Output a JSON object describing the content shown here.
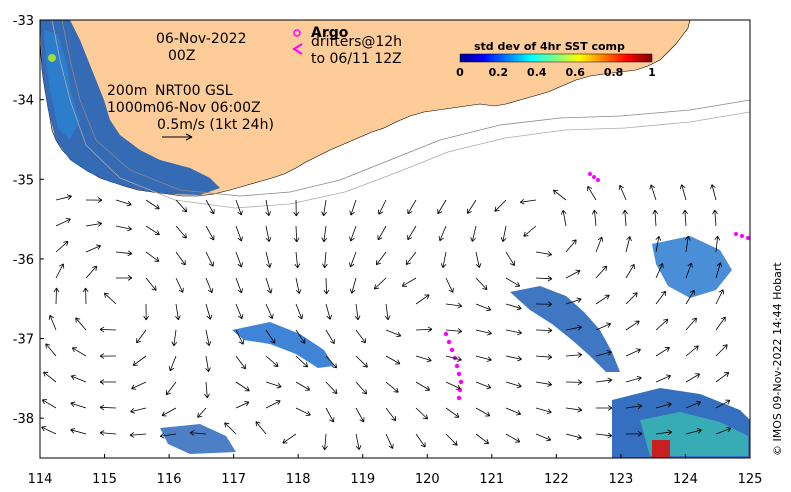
{
  "chart_data": {
    "type": "map",
    "x_ticks": [
      "114",
      "115",
      "116",
      "117",
      "118",
      "119",
      "120",
      "121",
      "122",
      "123",
      "124",
      "125"
    ],
    "y_ticks": [
      "-33",
      "-34",
      "-35",
      "-36",
      "-37",
      "-38"
    ],
    "xlim": [
      114,
      125
    ],
    "ylim": [
      -38.5,
      -33
    ],
    "land_color": "#fdcc99",
    "legend": {
      "date": "06-Nov-2022",
      "hour": "00Z",
      "argo_label": "Argo",
      "drifters_line1": "drifters@12h",
      "drifters_line2": "to 06/11 12Z",
      "contour_200": "200m",
      "contour_1000": "1000m",
      "product": "NRT00 GSL",
      "product_time": "06-Nov 06:00Z",
      "scale": "0.5m/s (1kt 24h)"
    },
    "colorbar": {
      "title": "std dev of 4hr SST comp",
      "ticks": [
        "0",
        "0.2",
        "0.4",
        "0.6",
        "0.8",
        "1"
      ]
    },
    "credit": "© IMOS 09-Nov-2022 14:44 Hobart",
    "colors": {
      "marker": "#ff00ff",
      "high": "#ff2200",
      "low": "#000080"
    }
  }
}
